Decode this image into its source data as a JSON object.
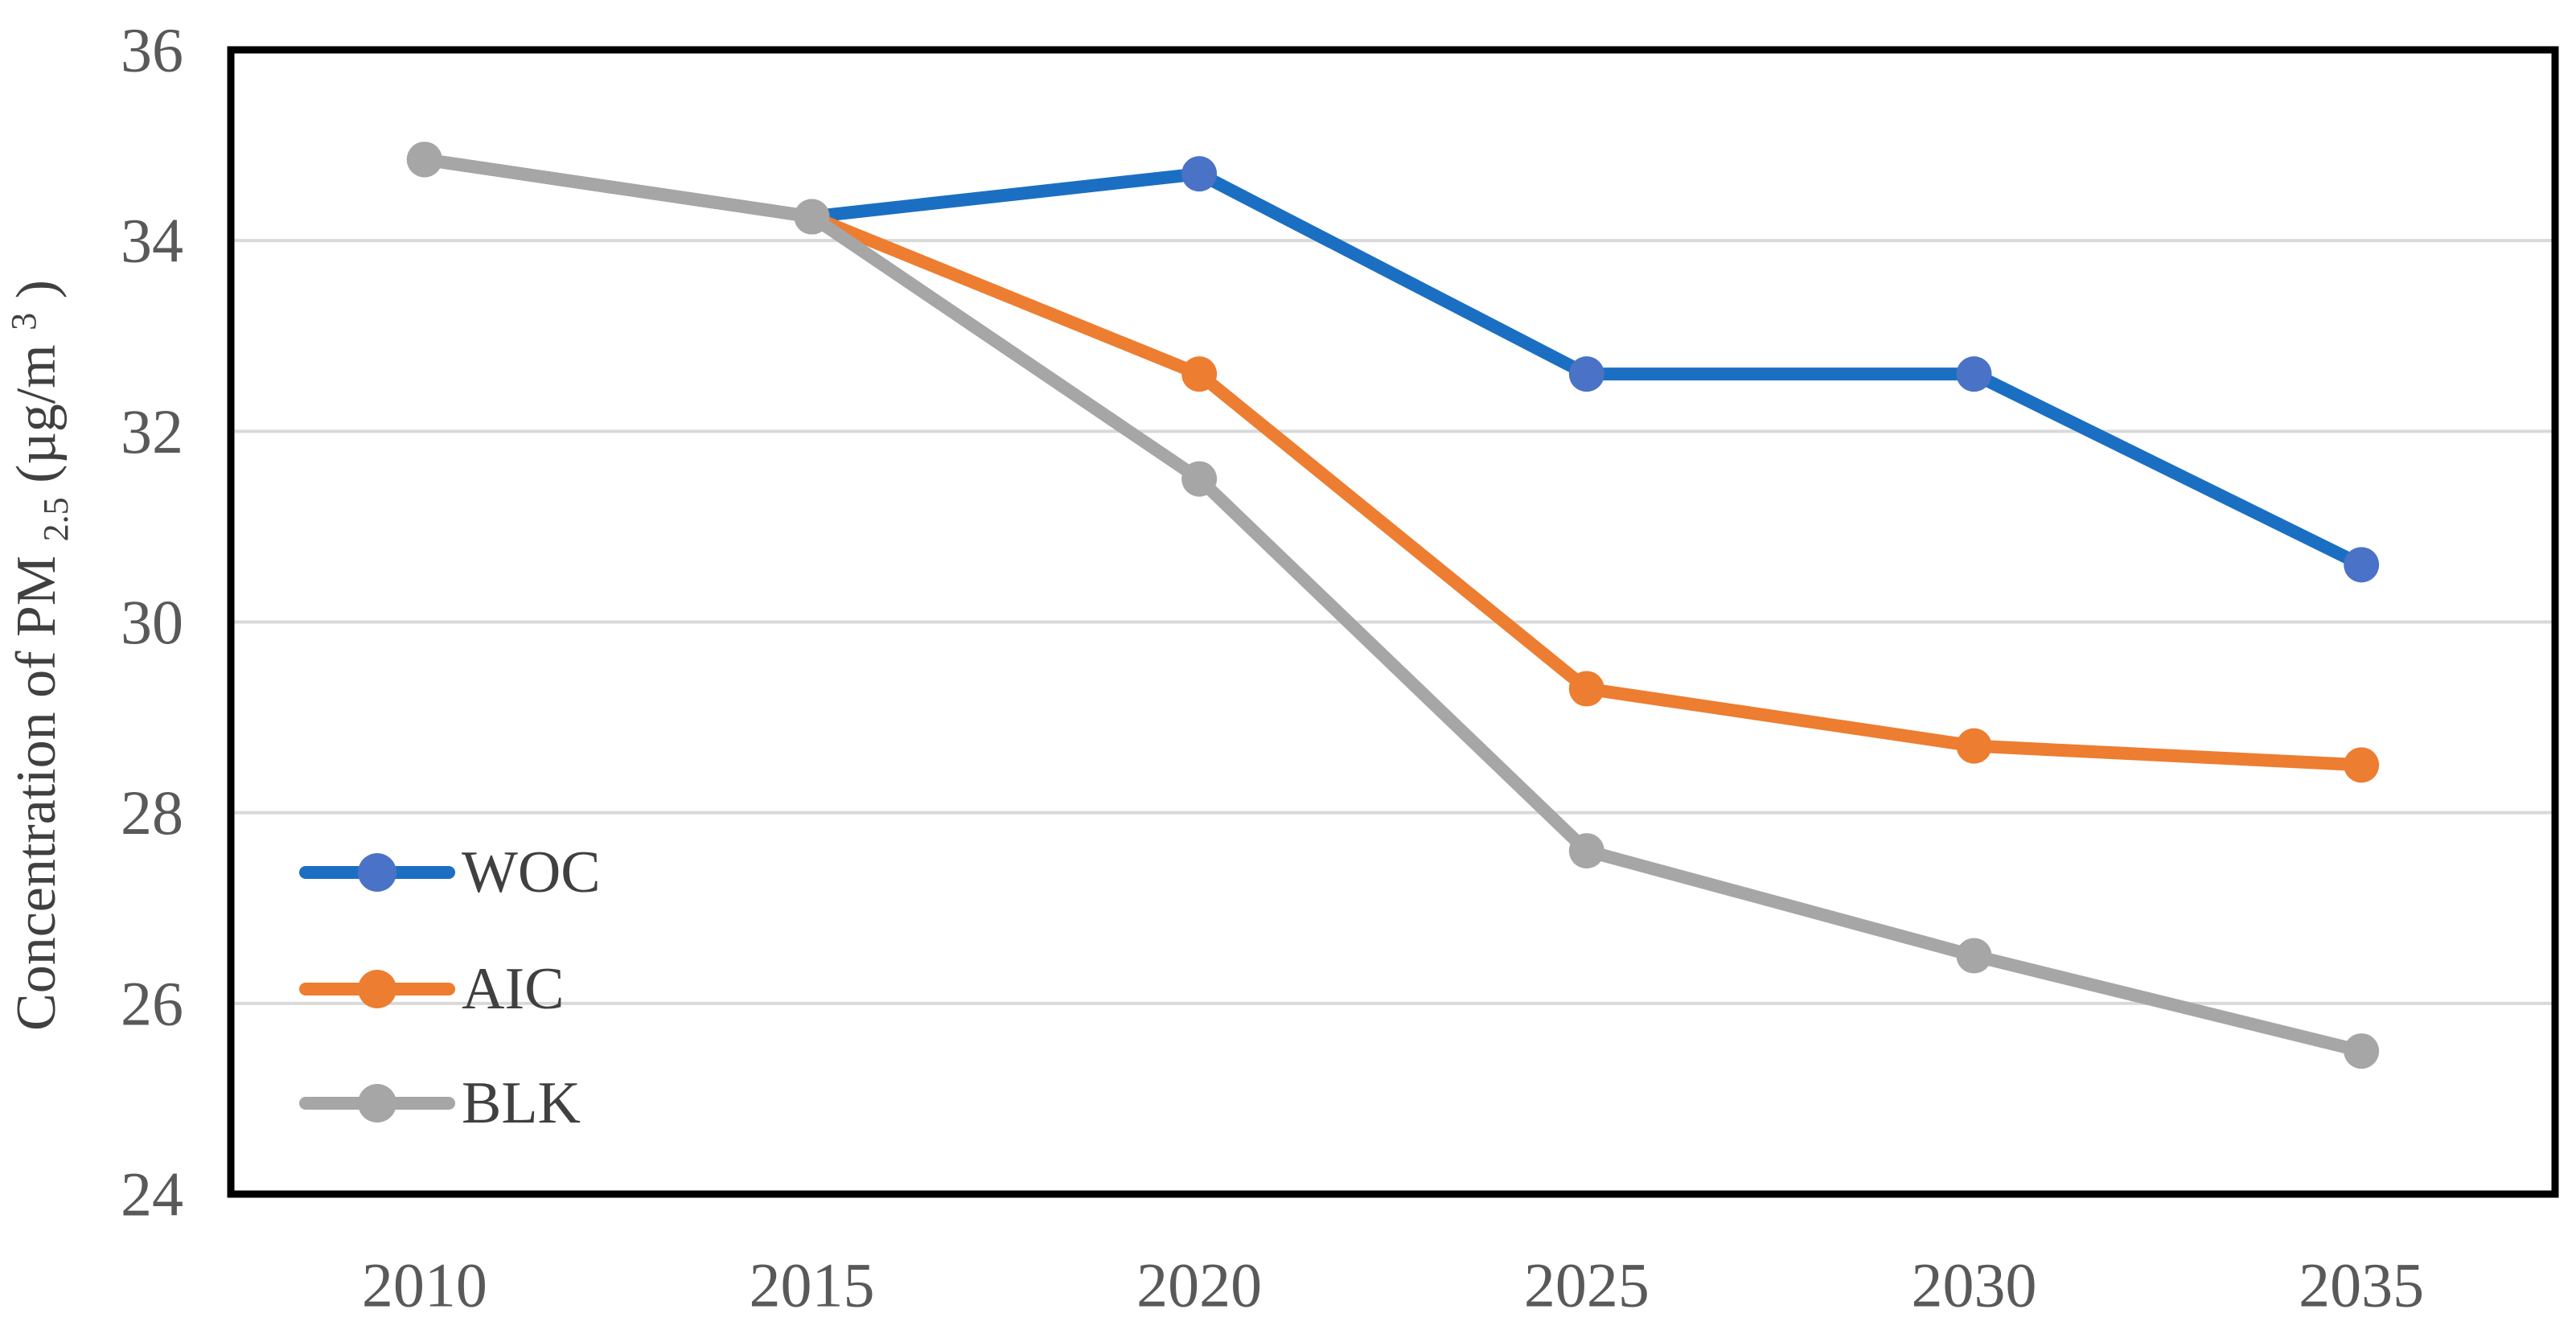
{
  "figure": {
    "background": "#ffffff"
  },
  "chart_data": {
    "type": "line",
    "title": "",
    "categories": [
      "2010",
      "2015",
      "2020",
      "2025",
      "2030",
      "2035"
    ],
    "series": [
      {
        "name": "WOC",
        "values": [
          34.85,
          34.25,
          34.7,
          32.6,
          32.6,
          30.6
        ],
        "line_color": "#1b6fc2",
        "marker_color": "#4a72c6"
      },
      {
        "name": "AIC",
        "values": [
          34.85,
          34.25,
          32.6,
          29.3,
          28.7,
          28.5
        ],
        "line_color": "#ed7d31",
        "marker_color": "#ed7d31"
      },
      {
        "name": "BLK",
        "values": [
          34.85,
          34.25,
          31.5,
          27.6,
          26.5,
          25.5
        ],
        "line_color": "#a6a6a6",
        "marker_color": "#a6a6a6"
      }
    ],
    "xlabel": "",
    "ylabel": {
      "text": "Concentration of PM",
      "sub": "2.5",
      "unit_open": "(µg/m",
      "sup": "3",
      "unit_close": ")"
    },
    "ylim": [
      24,
      36
    ],
    "yticks": [
      "24",
      "26",
      "28",
      "30",
      "32",
      "34",
      "36"
    ],
    "ytick_values": [
      24,
      26,
      28,
      30,
      32,
      34,
      36
    ],
    "grid": true,
    "legend_position": "inside-left",
    "legend": [
      "WOC",
      "AIC",
      "BLK"
    ],
    "colors": {
      "gridline": "#d9d9d9",
      "plot_border": "#000000",
      "tick_label": "#595959",
      "axis_title": "#404040",
      "legend_label": "#404040"
    }
  }
}
